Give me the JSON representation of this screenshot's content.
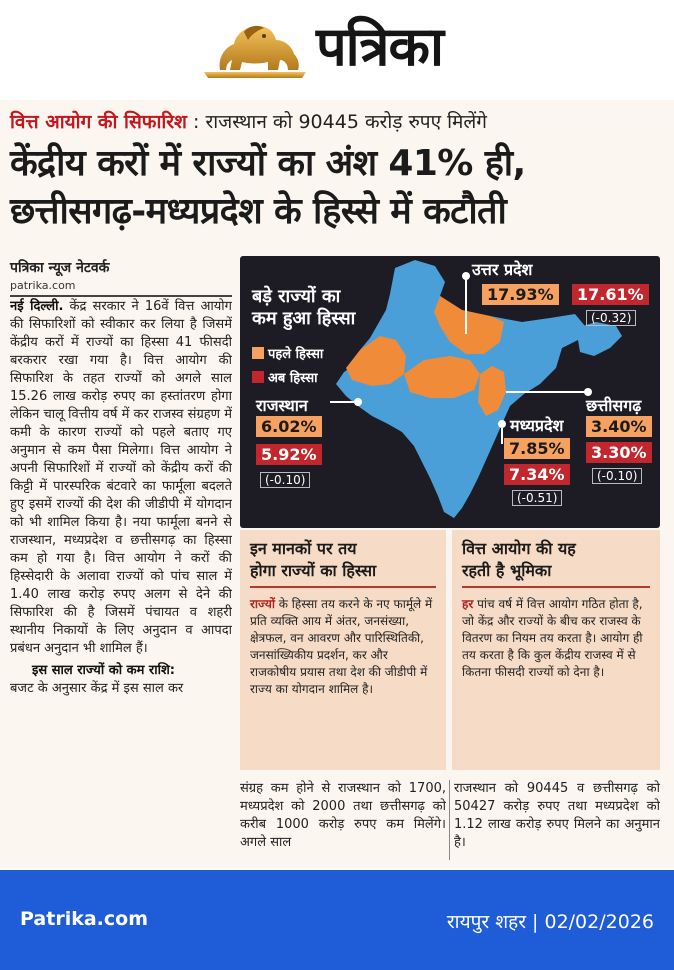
{
  "masthead": {
    "brand": "पत्रिका"
  },
  "article": {
    "kicker_label": "वित्त आयोग की सिफारिश",
    "kicker_sep": " : ",
    "kicker_text": "राजस्थान को 90445 करोड़ रुपए मिलेंगे",
    "headline_line1": "केंद्रीय करों में राज्यों का अंश 41% ही,",
    "headline_line2": "छत्तीसगढ़-मध्यप्रदेश के हिस्से में कटौती",
    "byline": "पत्रिका न्यूज नेटवर्क",
    "website": "patrika.com",
    "dateline": "नई दिल्ली.",
    "body_col1": "केंद्र सरकार ने 16वें वित्त आयोग की सिफारिशों को स्वीकार कर लिया है जिसमें केंद्रीय करों में राज्यों का हिस्सा 41 फीसदी बरकरार रखा गया है। वित्त आयोग की सिफारिश के तहत राज्यों को अगले साल 15.26 लाख करोड़ रुपए का हस्तांतरण होगा लेकिन चालू वित्तीय वर्ष में कर राजस्व संग्रहण में कमी के कारण राज्यों को पहले बताए गए अनुमान से कम पैसा मिलेगा। वित्त आयोग ने अपनी सिफारिशों में राज्यों को केंद्रीय करों की किट्टी में पारस्परिक बंटवारे का फार्मूला बदलते हुए इसमें राज्यों की देश की जीडीपी में योगदान को भी शामिल किया है। नया फार्मूला बनने से राजस्थान, मध्यप्रदेश व छत्तीसगढ़ का हिस्सा कम हो गया है। वित्त आयोग ने करों की हिस्सेदारी के अलावा राज्यों को पांच साल में 1.40 लाख करोड़ रुपए अलग से देने की सिफारिश की है जिसमें पंचायत व शहरी स्थानीय निकायों के लिए अनुदान व आपदा प्रबंधन अनुदान भी शामिल हैं।",
    "subhead": "इस साल राज्यों को कम राशि:",
    "body_col1_end": "बजट के अनुसार केंद्र में इस साल कर",
    "body_col2": "संग्रह कम होने से राजस्थान को 1700, मध्यप्रदेश को 2000 तथा छत्तीसगढ़ को करीब 1000 करोड़ रुपए कम मिलेंगे। अगले साल",
    "body_col3": "राजस्थान को 90445 व छत्तीसगढ़ को 50427 करोड़ रुपए तथा मध्यप्रदेश को 1.12 लाख करोड़ रुपए मिलने का अनुमान है।"
  },
  "graphic": {
    "title_line1": "बड़े राज्यों का",
    "title_line2": "कम हुआ हिस्सा",
    "legend": [
      {
        "label": "पहले हिस्सा",
        "color": "#f6a15f"
      },
      {
        "label": "अब हिस्सा",
        "color": "#c1272d"
      }
    ],
    "states": [
      {
        "name": "उत्तर प्रदेश",
        "before": "17.93%",
        "after": "17.61%",
        "change": "(-0.32)"
      },
      {
        "name": "राजस्थान",
        "before": "6.02%",
        "after": "5.92%",
        "change": "(-0.10)"
      },
      {
        "name": "मध्यप्रदेश",
        "before": "7.85%",
        "after": "7.34%",
        "change": "(-0.51)"
      },
      {
        "name": "छत्तीसगढ़",
        "before": "3.40%",
        "after": "3.30%",
        "change": "(-0.10)"
      }
    ],
    "colors": {
      "map_highlight": "#f08b3a",
      "map_base": "#4a9fd8",
      "panel": "#1d1c24"
    }
  },
  "info_left": {
    "title_line1": "इन मानकों पर तय",
    "title_line2": "होगा राज्यों का हिस्सा",
    "lead": "राज्यों",
    "text": " के हिस्सा तय करने के नए फार्मूले में प्रति व्यक्ति आय में अंतर, जनसंख्या, क्षेत्रफल, वन आवरण और पारिस्थितिकी, जनसांख्यिकीय प्रदर्शन, कर और राजकोषीय प्रयास तथा देश की जीडीपी में राज्य का योगदान शामिल है।"
  },
  "info_right": {
    "title_line1": "वित्त आयोग की यह",
    "title_line2": "रहती है भूमिका",
    "lead": "हर",
    "text": " पांच वर्ष में वित्त आयोग गठित होता है, जो केंद्र और राज्यों के बीच कर राजस्व के वितरण का नियम तय करता है। आयोग ही तय करता है कि कुल केंद्रीय राजस्व में से कितना फीसदी राज्यों को देना है।"
  },
  "footer": {
    "site": "Patrika.com",
    "edition": "रायपुर शहर | 02/02/2026"
  }
}
